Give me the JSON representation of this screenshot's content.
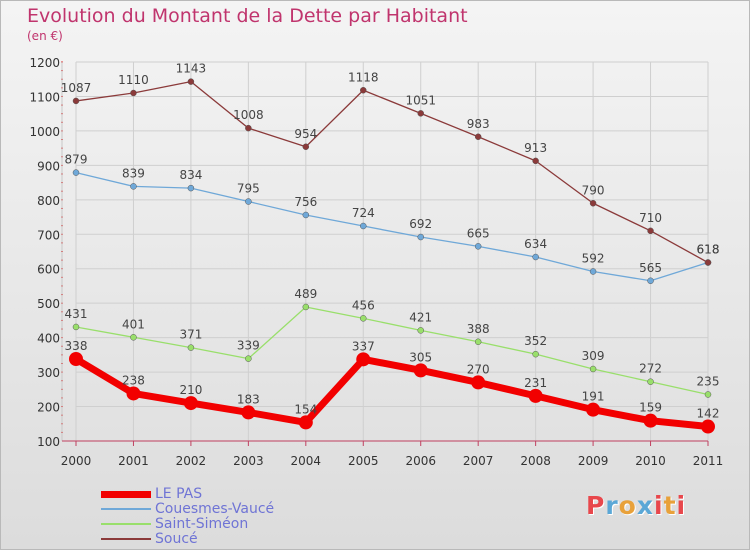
{
  "title": "Evolution du Montant de la Dette par Habitant",
  "subtitle": "(en €)",
  "logo_text": "Proxiti",
  "logo_colors": [
    "#e8474c",
    "#5aa7d6",
    "#e8a13a",
    "#5aa7d6",
    "#e8474c",
    "#e8a13a",
    "#e8474c"
  ],
  "chart_data": {
    "type": "line",
    "title": "Evolution du Montant de la Dette par Habitant",
    "subtitle": "(en €)",
    "x": [
      "2000",
      "2001",
      "2002",
      "2003",
      "2004",
      "2005",
      "2006",
      "2007",
      "2008",
      "2009",
      "2010",
      "2011"
    ],
    "ylim": [
      100,
      1200
    ],
    "yticks": [
      100,
      200,
      300,
      400,
      500,
      600,
      700,
      800,
      900,
      1000,
      1100,
      1200
    ],
    "grid": true,
    "legend_position": "bottom-left",
    "series": [
      {
        "name": "LE PAS",
        "color": "#f20000",
        "values": [
          338,
          238,
          210,
          183,
          154,
          337,
          305,
          270,
          231,
          191,
          159,
          142
        ]
      },
      {
        "name": "Couesmes-Vaucé",
        "color": "#6fa8d8",
        "values": [
          879,
          839,
          834,
          795,
          756,
          724,
          692,
          665,
          634,
          592,
          565,
          618
        ]
      },
      {
        "name": "Saint-Siméon",
        "color": "#99df6b",
        "values": [
          431,
          401,
          371,
          339,
          489,
          456,
          421,
          388,
          352,
          309,
          272,
          235
        ]
      },
      {
        "name": "Soucé",
        "color": "#8b3a3a",
        "values": [
          1087,
          1110,
          1143,
          1008,
          954,
          1118,
          1051,
          983,
          913,
          790,
          710,
          618
        ]
      }
    ]
  }
}
